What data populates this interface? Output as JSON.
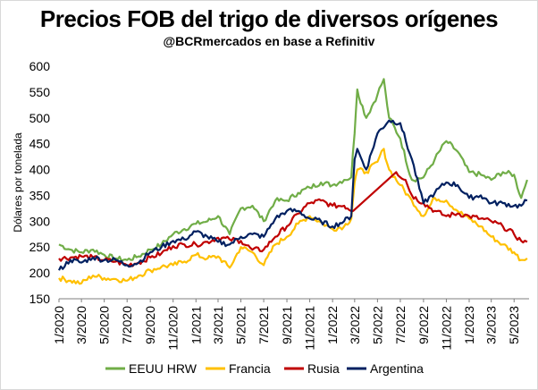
{
  "chart_data": {
    "type": "line",
    "title": "Precios FOB del trigo de diversos orígenes",
    "subtitle": "@BCRmercados en base a Refinitiv",
    "xlabel": "",
    "ylabel": "Dólares por tonelada",
    "ylim": [
      150,
      600
    ],
    "yticks": [
      150,
      200,
      250,
      300,
      350,
      400,
      450,
      500,
      550,
      600
    ],
    "xlim": [
      "2020-01-01",
      "2023-06-10"
    ],
    "xticks": [
      "1/2020",
      "3/2020",
      "5/2020",
      "7/2020",
      "9/2020",
      "11/2020",
      "1/2021",
      "3/2021",
      "5/2021",
      "7/2021",
      "9/2021",
      "11/2021",
      "1/2022",
      "3/2022",
      "5/2022",
      "7/2022",
      "9/2022",
      "11/2022",
      "1/2023",
      "3/2023",
      "5/2023"
    ],
    "grid": false,
    "legend": "bottom",
    "series": [
      {
        "name": "EEUU HRW",
        "color": "#70ad47",
        "x": [
          "2020-01-01",
          "2020-02-01",
          "2020-03-01",
          "2020-04-01",
          "2020-05-01",
          "2020-06-01",
          "2020-07-01",
          "2020-08-01",
          "2020-09-01",
          "2020-10-01",
          "2020-11-01",
          "2020-12-01",
          "2021-01-01",
          "2021-02-01",
          "2021-03-01",
          "2021-04-01",
          "2021-05-01",
          "2021-06-01",
          "2021-07-01",
          "2021-08-01",
          "2021-09-01",
          "2021-10-01",
          "2021-11-01",
          "2021-12-01",
          "2022-01-01",
          "2022-02-01",
          "2022-02-20",
          "2022-03-01",
          "2022-03-08",
          "2022-04-01",
          "2022-05-01",
          "2022-05-18",
          "2022-06-01",
          "2022-07-01",
          "2022-08-01",
          "2022-09-01",
          "2022-10-01",
          "2022-11-01",
          "2022-12-01",
          "2023-01-01",
          "2023-02-01",
          "2023-03-01",
          "2023-04-01",
          "2023-05-01",
          "2023-05-20",
          "2023-06-05"
        ],
        "values": [
          255,
          245,
          240,
          245,
          235,
          228,
          225,
          232,
          245,
          255,
          275,
          285,
          295,
          300,
          310,
          275,
          325,
          330,
          300,
          340,
          340,
          355,
          365,
          375,
          370,
          380,
          385,
          470,
          555,
          500,
          545,
          575,
          500,
          460,
          380,
          385,
          420,
          455,
          435,
          395,
          390,
          380,
          395,
          390,
          345,
          380
        ]
      },
      {
        "name": "Francia",
        "color": "#ffc000",
        "x": [
          "2020-01-01",
          "2020-02-01",
          "2020-03-01",
          "2020-04-01",
          "2020-05-01",
          "2020-06-01",
          "2020-07-01",
          "2020-08-01",
          "2020-09-01",
          "2020-10-01",
          "2020-11-01",
          "2020-12-01",
          "2021-01-01",
          "2021-02-01",
          "2021-03-01",
          "2021-04-01",
          "2021-05-01",
          "2021-06-01",
          "2021-07-01",
          "2021-08-01",
          "2021-09-01",
          "2021-10-01",
          "2021-11-01",
          "2021-12-01",
          "2022-01-01",
          "2022-02-01",
          "2022-02-20",
          "2022-03-01",
          "2022-03-08",
          "2022-04-01",
          "2022-05-01",
          "2022-05-18",
          "2022-06-01",
          "2022-07-01",
          "2022-08-01",
          "2022-09-01",
          "2022-10-01",
          "2022-11-01",
          "2022-12-01",
          "2023-01-01",
          "2023-02-01",
          "2023-03-01",
          "2023-04-01",
          "2023-05-01",
          "2023-05-20",
          "2023-06-05"
        ],
        "values": [
          190,
          185,
          180,
          195,
          190,
          188,
          185,
          195,
          205,
          212,
          215,
          222,
          235,
          228,
          232,
          210,
          250,
          240,
          215,
          255,
          270,
          295,
          310,
          298,
          285,
          290,
          305,
          375,
          400,
          395,
          415,
          440,
          400,
          370,
          340,
          310,
          345,
          340,
          320,
          305,
          290,
          270,
          255,
          240,
          225,
          228
        ]
      },
      {
        "name": "Rusia",
        "color": "#c00000",
        "x": [
          "2020-01-01",
          "2020-02-01",
          "2020-03-01",
          "2020-04-01",
          "2020-05-01",
          "2020-06-01",
          "2020-07-01",
          "2020-08-01",
          "2020-09-01",
          "2020-10-01",
          "2020-11-01",
          "2020-12-01",
          "2021-01-01",
          "2021-02-01",
          "2021-03-01",
          "2021-04-01",
          "2021-05-01",
          "2021-06-01",
          "2021-07-01",
          "2021-08-01",
          "2021-09-01",
          "2021-10-01",
          "2021-11-01",
          "2021-12-01",
          "2022-01-01",
          "2022-02-01",
          "2022-02-25",
          "2022-06-20",
          "2022-07-15",
          "2022-08-01",
          "2022-09-01",
          "2022-10-01",
          "2022-11-01",
          "2022-12-01",
          "2023-01-01",
          "2023-02-01",
          "2023-03-01",
          "2023-04-01",
          "2023-05-01",
          "2023-05-20",
          "2023-06-05"
        ],
        "values": [
          228,
          230,
          232,
          230,
          225,
          222,
          215,
          220,
          230,
          238,
          252,
          255,
          255,
          260,
          268,
          265,
          262,
          245,
          245,
          270,
          290,
          315,
          335,
          340,
          330,
          330,
          320,
          395,
          380,
          350,
          335,
          320,
          310,
          315,
          310,
          305,
          300,
          290,
          275,
          262,
          260
        ]
      },
      {
        "name": "Argentina",
        "color": "#002060",
        "x": [
          "2020-01-01",
          "2020-02-01",
          "2020-03-01",
          "2020-04-01",
          "2020-05-01",
          "2020-06-01",
          "2020-07-01",
          "2020-08-01",
          "2020-09-01",
          "2020-10-01",
          "2020-11-01",
          "2020-12-01",
          "2021-01-01",
          "2021-02-01",
          "2021-03-01",
          "2021-04-01",
          "2021-05-01",
          "2021-06-01",
          "2021-07-01",
          "2021-08-01",
          "2021-09-01",
          "2021-10-01",
          "2021-11-01",
          "2021-12-01",
          "2022-01-01",
          "2022-02-01",
          "2022-02-20",
          "2022-03-01",
          "2022-03-08",
          "2022-04-01",
          "2022-05-01",
          "2022-06-01",
          "2022-07-01",
          "2022-08-01",
          "2022-09-01",
          "2022-10-01",
          "2022-11-01",
          "2022-12-01",
          "2023-01-01",
          "2023-02-01",
          "2023-03-01",
          "2023-04-01",
          "2023-05-01",
          "2023-05-20",
          "2023-06-05"
        ],
        "values": [
          205,
          225,
          220,
          230,
          225,
          225,
          215,
          220,
          240,
          250,
          262,
          265,
          280,
          270,
          260,
          255,
          270,
          275,
          270,
          305,
          320,
          320,
          305,
          300,
          290,
          300,
          310,
          420,
          440,
          400,
          470,
          495,
          490,
          420,
          335,
          355,
          375,
          370,
          345,
          350,
          335,
          335,
          330,
          330,
          340
        ]
      }
    ]
  }
}
